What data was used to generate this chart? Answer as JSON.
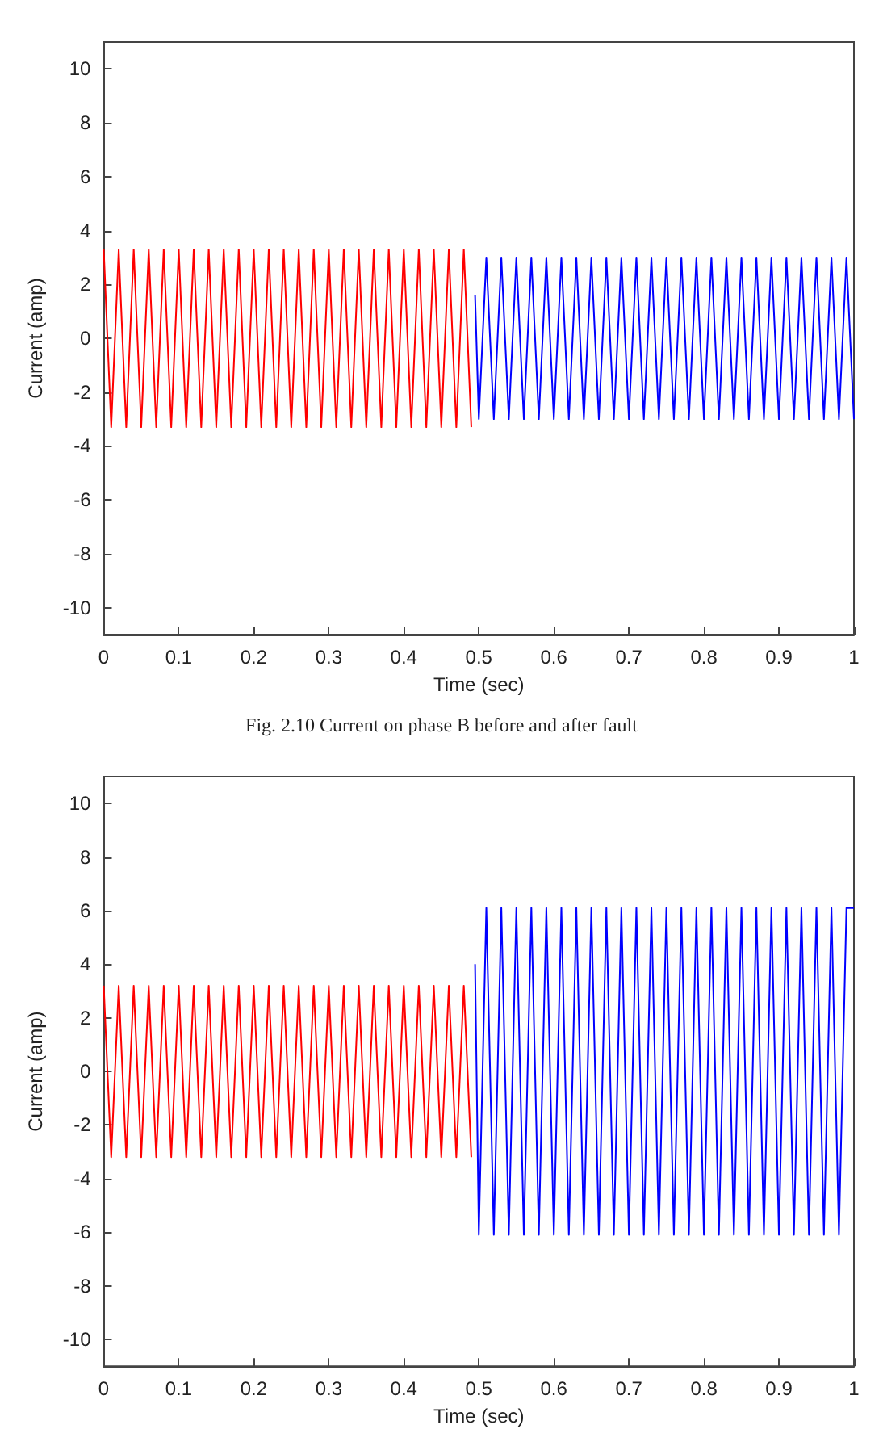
{
  "chart_data": [
    {
      "type": "line",
      "xlabel": "Time (sec)",
      "ylabel": "Current (amp)",
      "annotations": [
        "Fig. 2.10 Current on phase B before and after fault"
      ],
      "xlim": [
        0,
        1
      ],
      "ylim": [
        -11,
        11
      ],
      "xticks": [
        0,
        0.1,
        0.2,
        0.3,
        0.4,
        0.5,
        0.6,
        0.7,
        0.8,
        0.9,
        1
      ],
      "yticks": [
        -10,
        -8,
        -6,
        -4,
        -2,
        0,
        2,
        4,
        6,
        8,
        10
      ],
      "grid": false,
      "marker": "none",
      "line_style": "solid",
      "series": [
        {
          "color": "#ff0000",
          "x": [
            0,
            0.01,
            0.02,
            0.03,
            0.04,
            0.05,
            0.06,
            0.07,
            0.08,
            0.09,
            0.1,
            0.11,
            0.12,
            0.13,
            0.14,
            0.15,
            0.16,
            0.17,
            0.18,
            0.19,
            0.2,
            0.21,
            0.22,
            0.23,
            0.24,
            0.25,
            0.26,
            0.27,
            0.28,
            0.29,
            0.3,
            0.31,
            0.32,
            0.33,
            0.34,
            0.35,
            0.36,
            0.37,
            0.38,
            0.39,
            0.4,
            0.41,
            0.42,
            0.43,
            0.44,
            0.45,
            0.46,
            0.47,
            0.48,
            0.49
          ],
          "values": [
            3.3,
            -3.3,
            3.3,
            -3.3,
            3.3,
            -3.3,
            3.3,
            -3.3,
            3.3,
            -3.3,
            3.3,
            -3.3,
            3.3,
            -3.3,
            3.3,
            -3.3,
            3.3,
            -3.3,
            3.3,
            -3.3,
            3.3,
            -3.3,
            3.3,
            -3.3,
            3.3,
            -3.3,
            3.3,
            -3.3,
            3.3,
            -3.3,
            3.3,
            -3.3,
            3.3,
            -3.3,
            3.3,
            -3.3,
            3.3,
            -3.3,
            3.3,
            -3.3,
            3.3,
            -3.3,
            3.3,
            -3.3,
            3.3,
            -3.3,
            3.3,
            -3.3,
            3.3,
            -3.3
          ]
        },
        {
          "color": "#0000ff",
          "x": [
            0.495,
            0.5,
            0.51,
            0.52,
            0.53,
            0.54,
            0.55,
            0.56,
            0.57,
            0.58,
            0.59,
            0.6,
            0.61,
            0.62,
            0.63,
            0.64,
            0.65,
            0.66,
            0.67,
            0.68,
            0.69,
            0.7,
            0.71,
            0.72,
            0.73,
            0.74,
            0.75,
            0.76,
            0.77,
            0.78,
            0.79,
            0.8,
            0.81,
            0.82,
            0.83,
            0.84,
            0.85,
            0.86,
            0.87,
            0.88,
            0.89,
            0.9,
            0.91,
            0.92,
            0.93,
            0.94,
            0.95,
            0.96,
            0.97,
            0.98,
            0.99,
            1
          ],
          "values": [
            1.6,
            -3,
            3,
            -3,
            3,
            -3,
            3,
            -3,
            3,
            -3,
            3,
            -3,
            3,
            -3,
            3,
            -3,
            3,
            -3,
            3,
            -3,
            3,
            -3,
            3,
            -3,
            3,
            -3,
            3,
            -3,
            3,
            -3,
            3,
            -3,
            3,
            -3,
            3,
            -3,
            3,
            -3,
            3,
            -3,
            3,
            -3,
            3,
            -3,
            3,
            -3,
            3,
            -3,
            3,
            -3,
            3,
            -3
          ]
        }
      ]
    },
    {
      "type": "line",
      "xlabel": "Time (sec)",
      "ylabel": "Current (amp)",
      "xlim": [
        0,
        1
      ],
      "ylim": [
        -11,
        11
      ],
      "xticks": [
        0,
        0.1,
        0.2,
        0.3,
        0.4,
        0.5,
        0.6,
        0.7,
        0.8,
        0.9,
        1
      ],
      "yticks": [
        -10,
        -8,
        -6,
        -4,
        -2,
        0,
        2,
        4,
        6,
        8,
        10
      ],
      "grid": false,
      "marker": "none",
      "line_style": "solid",
      "series": [
        {
          "color": "#ff0000",
          "x": [
            0,
            0.01,
            0.02,
            0.03,
            0.04,
            0.05,
            0.06,
            0.07,
            0.08,
            0.09,
            0.1,
            0.11,
            0.12,
            0.13,
            0.14,
            0.15,
            0.16,
            0.17,
            0.18,
            0.19,
            0.2,
            0.21,
            0.22,
            0.23,
            0.24,
            0.25,
            0.26,
            0.27,
            0.28,
            0.29,
            0.3,
            0.31,
            0.32,
            0.33,
            0.34,
            0.35,
            0.36,
            0.37,
            0.38,
            0.39,
            0.4,
            0.41,
            0.42,
            0.43,
            0.44,
            0.45,
            0.46,
            0.47,
            0.48,
            0.49
          ],
          "values": [
            3.2,
            -3.2,
            3.2,
            -3.2,
            3.2,
            -3.2,
            3.2,
            -3.2,
            3.2,
            -3.2,
            3.2,
            -3.2,
            3.2,
            -3.2,
            3.2,
            -3.2,
            3.2,
            -3.2,
            3.2,
            -3.2,
            3.2,
            -3.2,
            3.2,
            -3.2,
            3.2,
            -3.2,
            3.2,
            -3.2,
            3.2,
            -3.2,
            3.2,
            -3.2,
            3.2,
            -3.2,
            3.2,
            -3.2,
            3.2,
            -3.2,
            3.2,
            -3.2,
            3.2,
            -3.2,
            3.2,
            -3.2,
            3.2,
            -3.2,
            3.2,
            -3.2,
            3.2,
            -3.2
          ]
        },
        {
          "color": "#0000ff",
          "x": [
            0.495,
            0.5,
            0.51,
            0.52,
            0.53,
            0.54,
            0.55,
            0.56,
            0.57,
            0.58,
            0.59,
            0.6,
            0.61,
            0.62,
            0.63,
            0.64,
            0.65,
            0.66,
            0.67,
            0.68,
            0.69,
            0.7,
            0.71,
            0.72,
            0.73,
            0.74,
            0.75,
            0.76,
            0.77,
            0.78,
            0.79,
            0.8,
            0.81,
            0.82,
            0.83,
            0.84,
            0.85,
            0.86,
            0.87,
            0.88,
            0.89,
            0.9,
            0.91,
            0.92,
            0.93,
            0.94,
            0.95,
            0.96,
            0.97,
            0.98,
            0.99,
            1
          ],
          "values": [
            4,
            -6.1,
            6.1,
            -6.1,
            6.1,
            -6.1,
            6.1,
            -6.1,
            6.1,
            -6.1,
            6.1,
            -6.1,
            6.1,
            -6.1,
            6.1,
            -6.1,
            6.1,
            -6.1,
            6.1,
            -6.1,
            6.1,
            -6.1,
            6.1,
            -6.1,
            6.1,
            -6.1,
            6.1,
            -6.1,
            6.1,
            -6.1,
            6.1,
            -6.1,
            6.1,
            -6.1,
            6.1,
            -6.1,
            6.1,
            -6.1,
            6.1,
            -6.1,
            6.1,
            -6.1,
            6.1,
            -6.1,
            6.1,
            -6.1,
            6.1,
            -6.1,
            6.1,
            -6.1,
            6.1,
            6.1
          ]
        }
      ]
    }
  ]
}
